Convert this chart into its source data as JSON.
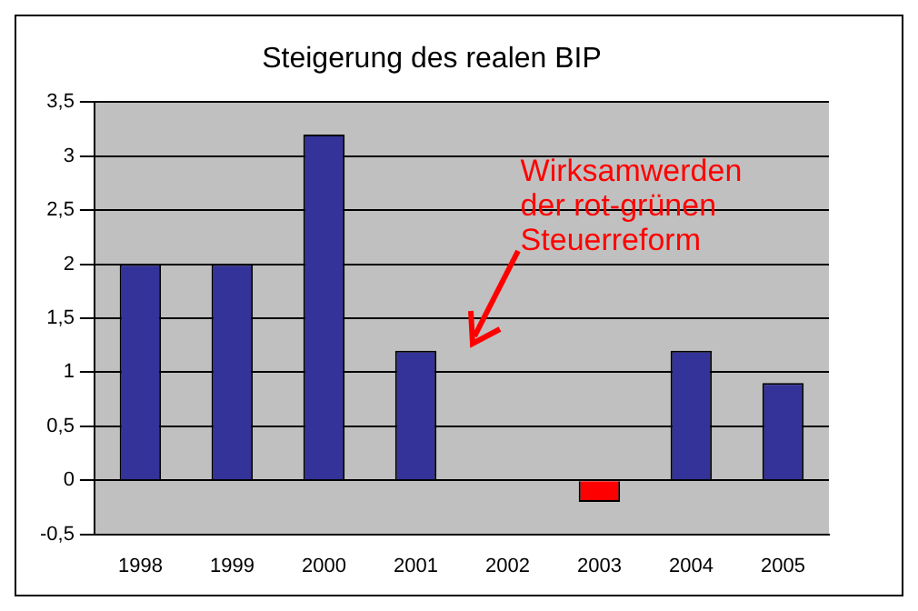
{
  "chart_data": {
    "type": "bar",
    "title": "Steigerung des realen BIP",
    "categories": [
      "1998",
      "1999",
      "2000",
      "2001",
      "2002",
      "2003",
      "2004",
      "2005"
    ],
    "values": [
      2.0,
      2.0,
      3.2,
      1.2,
      0,
      -0.2,
      1.2,
      0.9
    ],
    "colors": [
      "#333399",
      "#333399",
      "#333399",
      "#333399",
      "#333399",
      "#ff0000",
      "#333399",
      "#333399"
    ],
    "ylim": [
      -0.5,
      3.5
    ],
    "yticks": [
      {
        "value": -0.5,
        "label": "-0,5"
      },
      0,
      {
        "value": 0.5,
        "label": "0,5"
      },
      1,
      {
        "value": 1.5,
        "label": "1,5"
      },
      2,
      {
        "value": 2.5,
        "label": "2,5"
      },
      3,
      {
        "value": 3.5,
        "label": "3,5"
      }
    ],
    "grid": "y",
    "legend": false,
    "annotations": [
      "Wirksamwerden der rot-grünen Steuerreform"
    ]
  }
}
